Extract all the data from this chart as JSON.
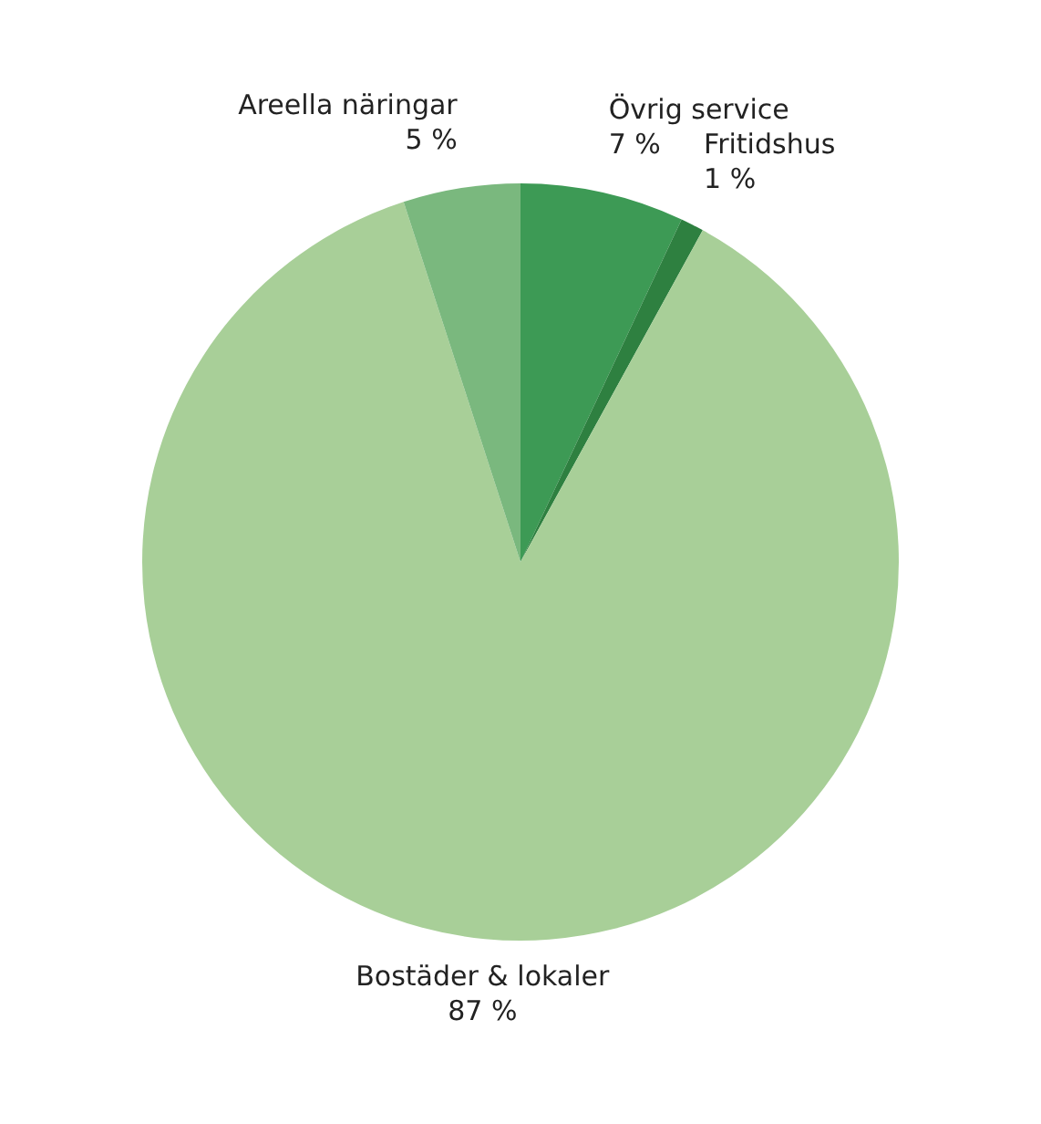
{
  "chart_data": {
    "type": "pie",
    "categories": [
      "Övrig service",
      "Fritidshus",
      "Bostäder & lokaler",
      "Areella näringar"
    ],
    "values": [
      7,
      1,
      87,
      5
    ],
    "colors": [
      "#3d9a55",
      "#2e8040",
      "#a8cf98",
      "#7ab87e"
    ],
    "value_labels": [
      "7 %",
      "1 %",
      "87 %",
      "5 %"
    ],
    "legend": false
  }
}
